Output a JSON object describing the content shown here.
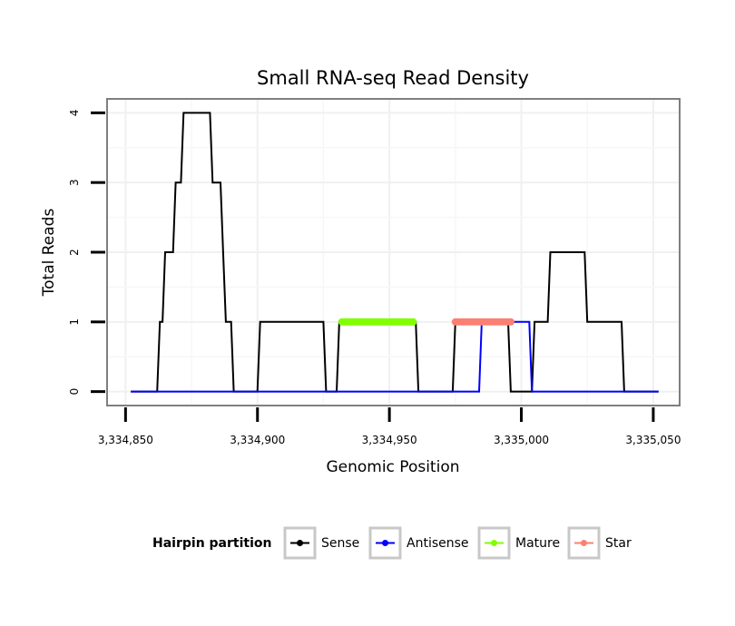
{
  "chart_data": {
    "type": "line",
    "title": "Small RNA-seq Read Density",
    "xlabel": "Genomic Position",
    "ylabel": "Total Reads",
    "xlim": [
      3334843,
      3335060
    ],
    "ylim": [
      -0.2,
      4.2
    ],
    "x_ticks": [
      3334850,
      3334900,
      3334950,
      3335000,
      3335050
    ],
    "x_tick_labels": [
      "3,334,850",
      "3,334,900",
      "3,334,950",
      "3,335,000",
      "3,335,050"
    ],
    "y_ticks": [
      0,
      1,
      2,
      3,
      4
    ],
    "y_tick_labels": [
      "0",
      "1",
      "2",
      "3",
      "4"
    ],
    "grid": true,
    "legend": {
      "title": "Hairpin partition",
      "position": "bottom",
      "items": [
        {
          "label": "Sense",
          "color": "#000000"
        },
        {
          "label": "Antisense",
          "color": "#0000ff"
        },
        {
          "label": "Mature",
          "color": "#7fff00"
        },
        {
          "label": "Star",
          "color": "#fa8072"
        }
      ]
    },
    "series": [
      {
        "name": "Sense",
        "color": "#000000",
        "points": [
          [
            3334852,
            0
          ],
          [
            3334862,
            0
          ],
          [
            3334863,
            1
          ],
          [
            3334864,
            1
          ],
          [
            3334865,
            2
          ],
          [
            3334868,
            2
          ],
          [
            3334869,
            3
          ],
          [
            3334871,
            3
          ],
          [
            3334872,
            4
          ],
          [
            3334882,
            4
          ],
          [
            3334883,
            3
          ],
          [
            3334886,
            3
          ],
          [
            3334887,
            2
          ],
          [
            3334888,
            1
          ],
          [
            3334890,
            1
          ],
          [
            3334891,
            0
          ],
          [
            3334900,
            0
          ],
          [
            3334901,
            1
          ],
          [
            3334925,
            1
          ],
          [
            3334926,
            0
          ],
          [
            3334930,
            0
          ],
          [
            3334931,
            1
          ],
          [
            3334960,
            1
          ],
          [
            3334961,
            0
          ],
          [
            3334974,
            0
          ],
          [
            3334975,
            1
          ],
          [
            3334995,
            1
          ],
          [
            3334996,
            0
          ],
          [
            3335004,
            0
          ],
          [
            3335005,
            1
          ],
          [
            3335010,
            1
          ],
          [
            3335011,
            2
          ],
          [
            3335024,
            2
          ],
          [
            3335025,
            1
          ],
          [
            3335038,
            1
          ],
          [
            3335039,
            0
          ],
          [
            3335052,
            0
          ]
        ]
      },
      {
        "name": "Antisense",
        "color": "#0000ff",
        "points": [
          [
            3334852,
            0
          ],
          [
            3334984,
            0
          ],
          [
            3334985,
            1
          ],
          [
            3335003,
            1
          ],
          [
            3335004,
            0
          ],
          [
            3335052,
            0
          ]
        ]
      },
      {
        "name": "Mature",
        "color": "#7fff00",
        "points": [
          [
            3334932,
            1
          ],
          [
            3334959,
            1
          ]
        ]
      },
      {
        "name": "Star",
        "color": "#fa8072",
        "points": [
          [
            3334975,
            1
          ],
          [
            3334996,
            1
          ]
        ]
      }
    ]
  }
}
